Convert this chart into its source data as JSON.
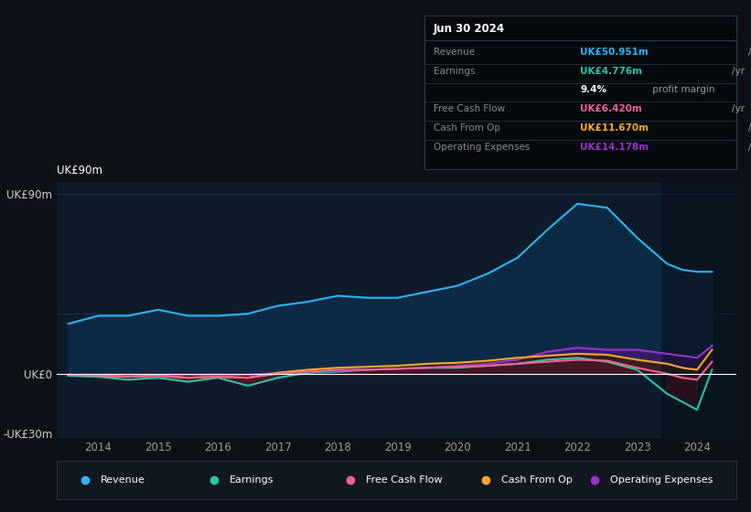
{
  "bg_color": "#0d1117",
  "plot_bg": "#0d1b2a",
  "years": [
    2013.5,
    2014.0,
    2014.5,
    2015.0,
    2015.5,
    2016.0,
    2016.5,
    2017.0,
    2017.5,
    2018.0,
    2018.5,
    2019.0,
    2019.5,
    2020.0,
    2020.5,
    2021.0,
    2021.5,
    2022.0,
    2022.5,
    2023.0,
    2023.5,
    2023.75,
    2024.0,
    2024.25
  ],
  "revenue": [
    25,
    29,
    29,
    32,
    29,
    29,
    30,
    34,
    36,
    39,
    38,
    38,
    41,
    44,
    50,
    58,
    72,
    85,
    83,
    68,
    55,
    52,
    51,
    51
  ],
  "earnings": [
    -1,
    -1.5,
    -3,
    -2,
    -4,
    -2,
    -6,
    -2,
    0.5,
    1,
    2,
    2.5,
    3,
    3,
    4,
    5,
    7,
    8,
    6,
    2,
    -10,
    -14,
    -18,
    2
  ],
  "free_cash_flow": [
    -0.5,
    -1,
    -1.5,
    -1,
    -2,
    -1.5,
    -2,
    0,
    1,
    2,
    2,
    2.5,
    3,
    3.5,
    4,
    5,
    6,
    7,
    6.5,
    3,
    0,
    -2,
    -3,
    6
  ],
  "cash_from_op": [
    -0.5,
    -1,
    -1.5,
    -1,
    -2,
    -1.5,
    -2,
    0.5,
    2,
    3,
    3.5,
    4,
    5,
    5.5,
    6.5,
    8,
    9,
    10,
    9.5,
    7,
    5,
    3,
    2,
    12
  ],
  "operating_expenses": [
    -0.5,
    -0.5,
    -0.5,
    -0.5,
    -0.5,
    -0.5,
    -0.5,
    0.5,
    1,
    1.5,
    2,
    2.5,
    3,
    4,
    5,
    7,
    11,
    13,
    12,
    12,
    10,
    9,
    8,
    14
  ],
  "revenue_color": "#29b6f6",
  "earnings_color": "#26c6a6",
  "free_cash_flow_color": "#f06292",
  "cash_from_op_color": "#ffa726",
  "operating_expenses_color": "#9933cc",
  "ylim_min": -32,
  "ylim_max": 96,
  "x_ticks": [
    2014,
    2015,
    2016,
    2017,
    2018,
    2019,
    2020,
    2021,
    2022,
    2023,
    2024
  ],
  "info_box_date": "Jun 30 2024",
  "legend_items": [
    {
      "label": "Revenue",
      "color": "#29b6f6"
    },
    {
      "label": "Earnings",
      "color": "#26c6a6"
    },
    {
      "label": "Free Cash Flow",
      "color": "#f06292"
    },
    {
      "label": "Cash From Op",
      "color": "#ffa726"
    },
    {
      "label": "Operating Expenses",
      "color": "#9933cc"
    }
  ]
}
